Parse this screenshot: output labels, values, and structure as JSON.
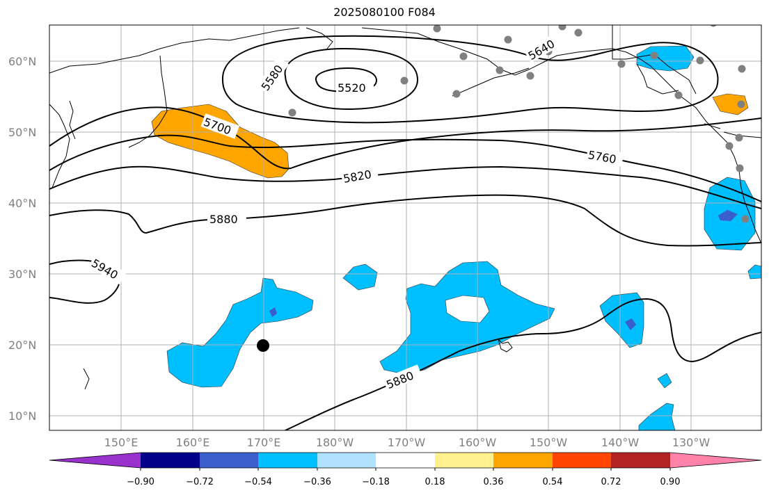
{
  "title": "2025080100 F084",
  "map": {
    "lat_labels": [
      "60°N",
      "50°N",
      "40°N",
      "30°N",
      "20°N",
      "10°N"
    ],
    "lon_labels": [
      "150°E",
      "160°E",
      "170°E",
      "180°W",
      "170°W",
      "160°W",
      "150°W",
      "140°W",
      "130°W"
    ],
    "contour_labels": [
      "5520",
      "5580",
      "5640",
      "5700",
      "5760",
      "5820",
      "5880",
      "5880",
      "5940"
    ],
    "colors": {
      "negative_fill": "#00bfff",
      "negative_strong": "#3a5fcd",
      "positive_fill": "#ffa500",
      "station_dot": "#808080",
      "center_marker": "#000000",
      "grid": "#b0b0b0"
    }
  },
  "colorbar": {
    "ticks": [
      "−0.90",
      "−0.72",
      "−0.54",
      "−0.36",
      "−0.18",
      "0.18",
      "0.36",
      "0.54",
      "0.72",
      "0.90"
    ],
    "colors": [
      "#9932cc",
      "#00008b",
      "#3a5fcd",
      "#00bfff",
      "#b0e2ff",
      "#ffffff",
      "#fff08f",
      "#ffa500",
      "#ff4500",
      "#b22222",
      "#ff82ab"
    ]
  }
}
